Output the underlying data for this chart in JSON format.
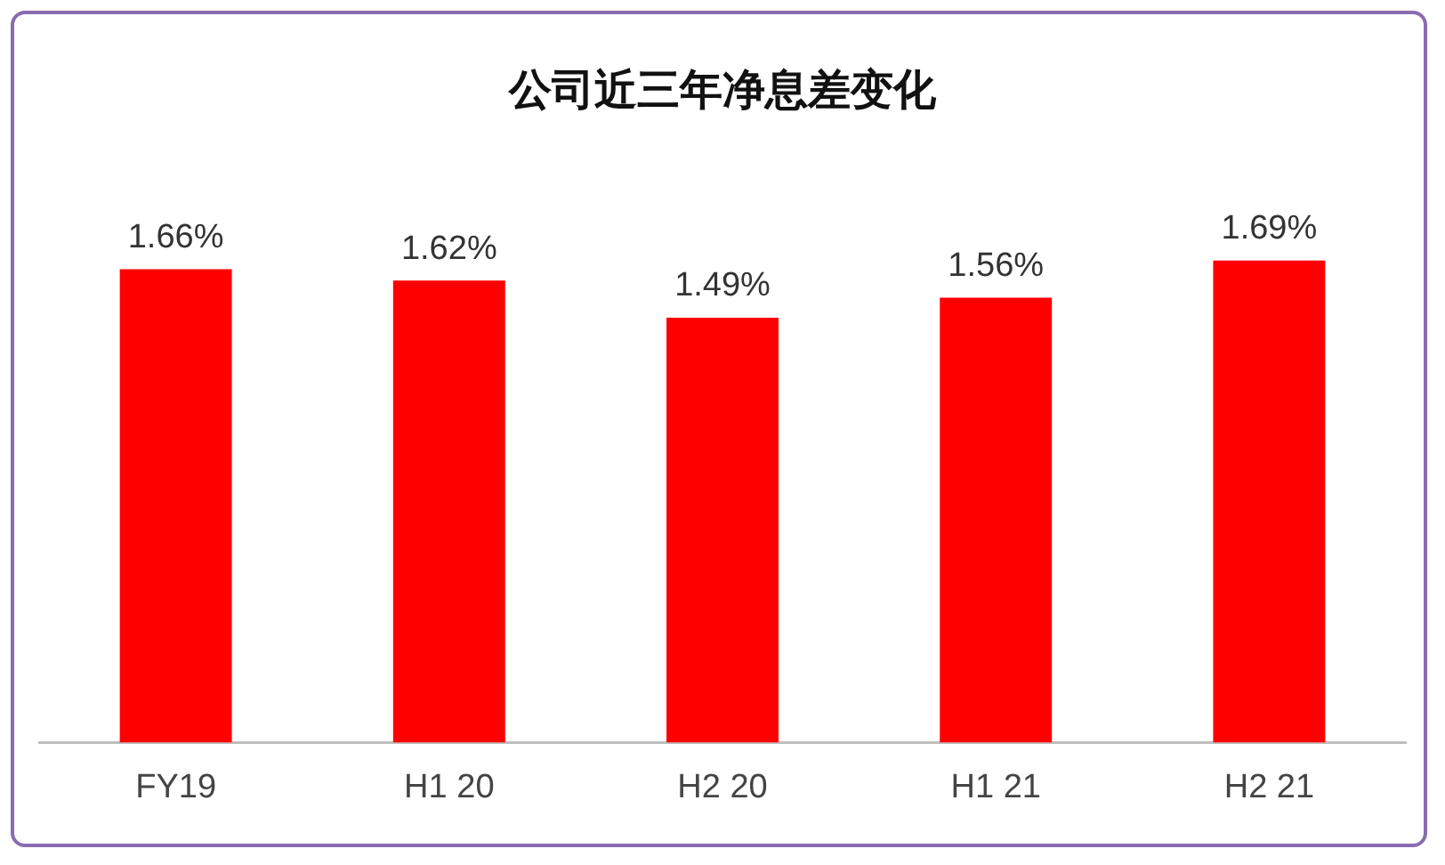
{
  "chart_data": {
    "type": "bar",
    "title": "公司近三年净息差变化",
    "categories": [
      "FY19",
      "H1 20",
      "H2 20",
      "H1 21",
      "H2 21"
    ],
    "values": [
      1.66,
      1.62,
      1.49,
      1.56,
      1.69
    ],
    "value_labels": [
      "1.66%",
      "1.62%",
      "1.49%",
      "1.56%",
      "1.69%"
    ],
    "color": "#ff0000",
    "grid": false,
    "legend": false
  }
}
